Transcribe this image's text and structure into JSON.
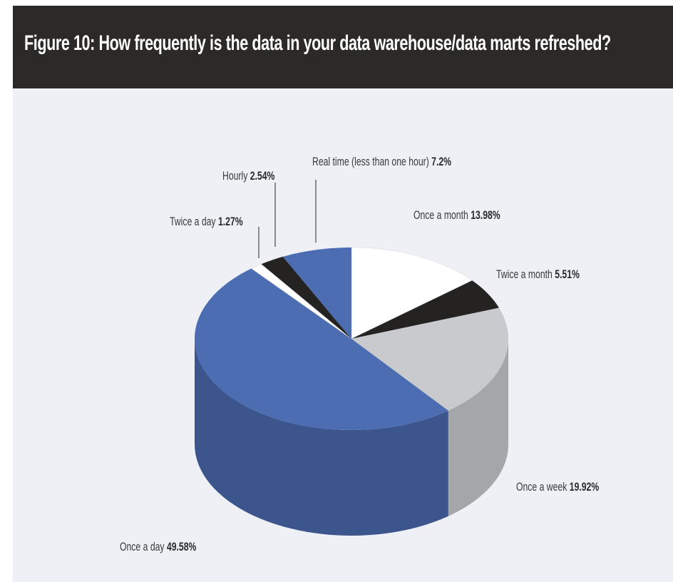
{
  "header": {
    "title": "Figure 10:  How frequently is the data in your data warehouse/data marts refreshed?"
  },
  "chart_data": {
    "type": "pie",
    "style": "3d",
    "title": "Figure 10:  How frequently is the data in your data warehouse/data marts refreshed?",
    "slices": [
      {
        "label": "Once a month",
        "value": 13.98,
        "value_label": "13.98%",
        "color": "#ffffff"
      },
      {
        "label": "Twice a month",
        "value": 5.51,
        "value_label": "5.51%",
        "color": "#242322"
      },
      {
        "label": "Once a week",
        "value": 19.92,
        "value_label": "19.92%",
        "color": "#c9cacd"
      },
      {
        "label": "Once a day",
        "value": 49.58,
        "value_label": "49.58%",
        "color": "#4d6db3"
      },
      {
        "label": "Twice a day",
        "value": 1.27,
        "value_label": "1.27%",
        "color": "#ffffff"
      },
      {
        "label": "Hourly",
        "value": 2.54,
        "value_label": "2.54%",
        "color": "#242322"
      },
      {
        "label": "Real time (less than one hour)",
        "value": 7.2,
        "value_label": "7.2%",
        "color": "#4d6db3"
      }
    ],
    "start": "12 o'clock",
    "direction": "clockwise"
  }
}
